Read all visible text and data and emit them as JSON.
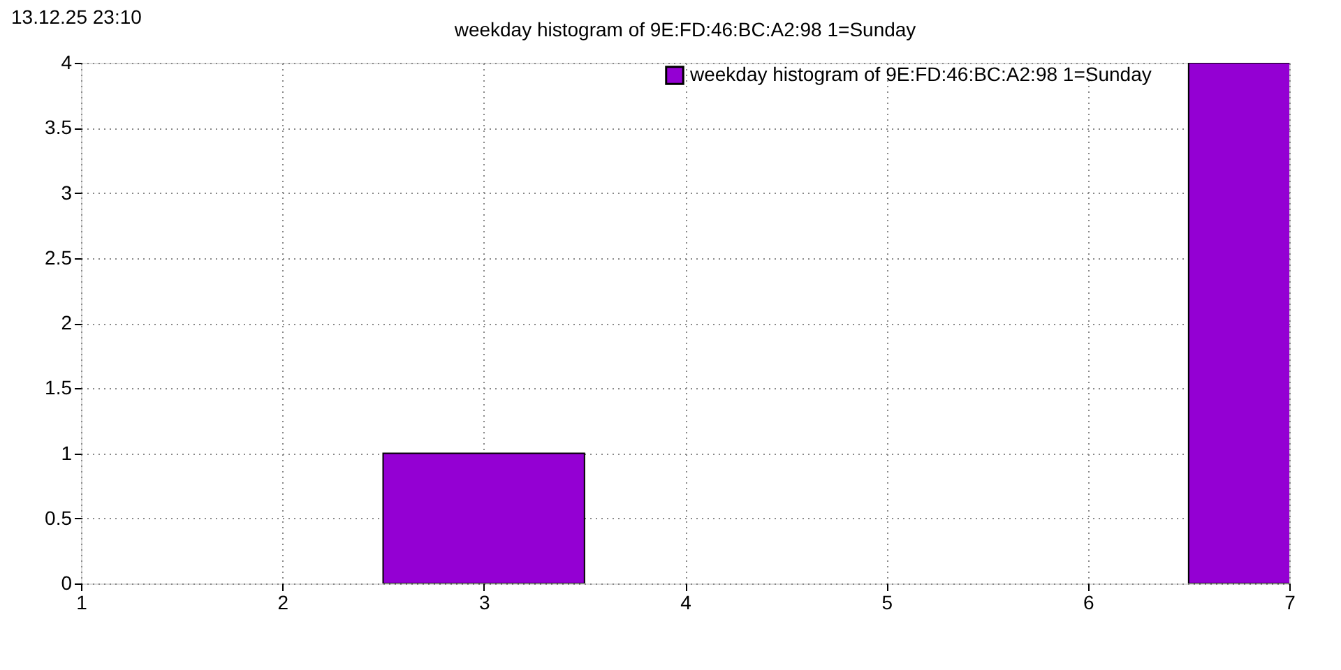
{
  "chart_data": {
    "type": "bar",
    "title": "weekday histogram of 9E:FD:46:BC:A2:98 1=Sunday",
    "annotations": [
      "13.12.25 23:10"
    ],
    "x": [
      3,
      7
    ],
    "series": [
      {
        "name": "weekday histogram of 9E:FD:46:BC:A2:98 1=Sunday",
        "color": "#9400d3",
        "values": [
          1,
          4
        ]
      }
    ],
    "xlim": [
      1,
      7
    ],
    "xticks": [
      1,
      2,
      3,
      4,
      5,
      6,
      7
    ],
    "ylim": [
      0,
      4
    ],
    "yticks": [
      0,
      0.5,
      1,
      1.5,
      2,
      2.5,
      3,
      3.5,
      4
    ],
    "grid": true,
    "legend": "top right"
  }
}
